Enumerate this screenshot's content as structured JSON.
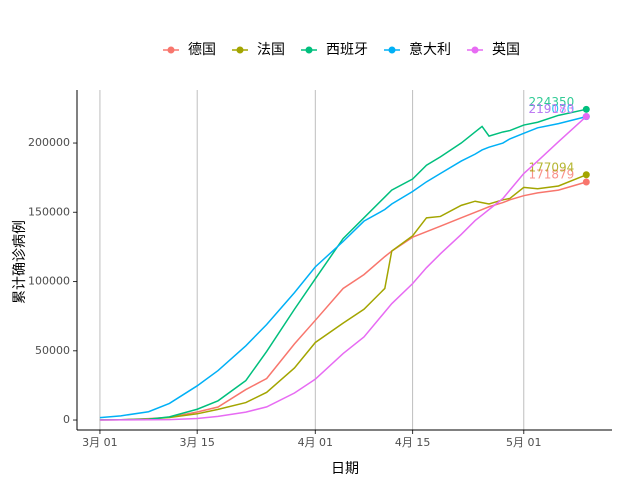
{
  "chart_data": {
    "type": "line",
    "x_label": "日期",
    "y_label": "累计确诊病例",
    "x": [
      0,
      3,
      7,
      10,
      14,
      17,
      21,
      24,
      28,
      31,
      35,
      38,
      41,
      42,
      45,
      47,
      49,
      52,
      54,
      55,
      56,
      58,
      59,
      61,
      63,
      66,
      70
    ],
    "xlim": [
      -3.3,
      73.7
    ],
    "xticks": [
      {
        "value": 0,
        "label": "3月 01"
      },
      {
        "value": 14,
        "label": "3月 15"
      },
      {
        "value": 31,
        "label": "4月 01"
      },
      {
        "value": 45,
        "label": "4月 15"
      },
      {
        "value": 61,
        "label": "5月 01"
      }
    ],
    "ylim": [
      -7200,
      238300
    ],
    "yticks": [
      0,
      50000,
      100000,
      150000,
      200000
    ],
    "grid": "x",
    "legend": "top",
    "series": [
      {
        "name": "德国",
        "color": "#F8766D",
        "values": [
          100,
          200,
          1000,
          1900,
          5800,
          9400,
          22000,
          30000,
          55000,
          72000,
          95000,
          105000,
          118000,
          122000,
          132000,
          136000,
          140000,
          146000,
          150000,
          152000,
          154000,
          157000,
          159000,
          162000,
          164000,
          166000,
          171879
        ]
      },
      {
        "name": "法国",
        "color": "#A3A500",
        "values": [
          100,
          200,
          700,
          1800,
          4500,
          7700,
          12600,
          20000,
          37600,
          56000,
          70000,
          80000,
          95000,
          122000,
          133000,
          146000,
          147000,
          155000,
          158000,
          157000,
          156000,
          159000,
          160000,
          168000,
          167000,
          169000,
          177094
        ]
      },
      {
        "name": "西班牙",
        "color": "#00BF7D",
        "values": [
          100,
          200,
          600,
          2300,
          7800,
          13900,
          28500,
          49500,
          80000,
          102000,
          131000,
          146000,
          161000,
          166000,
          174000,
          184000,
          190000,
          200000,
          208000,
          212000,
          205000,
          208000,
          209000,
          213000,
          215000,
          220000,
          224350
        ]
      },
      {
        "name": "意大利",
        "color": "#00B0F6",
        "values": [
          1700,
          3000,
          6000,
          12000,
          24700,
          35700,
          53600,
          69000,
          92000,
          110600,
          128900,
          143600,
          152000,
          156000,
          165000,
          172000,
          178000,
          187000,
          192000,
          195000,
          197000,
          200000,
          203000,
          207000,
          211000,
          214000,
          219070
        ]
      },
      {
        "name": "英国",
        "color": "#E76BF3",
        "values": [
          0,
          100,
          200,
          300,
          1100,
          2600,
          5700,
          9500,
          19500,
          29500,
          48000,
          60000,
          78000,
          84000,
          98500,
          110000,
          120000,
          134000,
          144000,
          148000,
          152000,
          160000,
          166000,
          178000,
          187000,
          201000,
          219183
        ]
      }
    ]
  }
}
